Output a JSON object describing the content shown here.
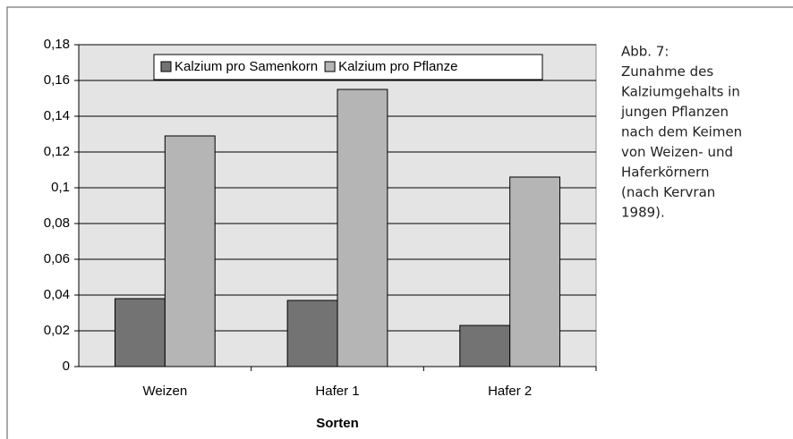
{
  "chart_data": {
    "type": "bar",
    "categories": [
      "Weizen",
      "Hafer 1",
      "Hafer 2"
    ],
    "series": [
      {
        "name": "Kalzium pro Samenkorn",
        "color": "#737373",
        "values": [
          0.038,
          0.037,
          0.023
        ]
      },
      {
        "name": "Kalzium pro Pflanze",
        "color": "#b5b5b5",
        "values": [
          0.129,
          0.155,
          0.106
        ]
      }
    ],
    "x_label": "Sorten",
    "ylim": [
      0,
      0.18
    ],
    "yticks": [
      0,
      {
        "value": 0.02,
        "label": "0,02"
      },
      {
        "value": 0.04,
        "label": "0,04"
      },
      {
        "value": 0.06,
        "label": "0,06"
      },
      {
        "value": 0.08,
        "label": "0,08"
      },
      {
        "value": 0.1,
        "label": "0,1"
      },
      {
        "value": 0.12,
        "label": "0,12"
      },
      {
        "value": 0.14,
        "label": "0,14"
      },
      {
        "value": 0.16,
        "label": "0,16"
      },
      {
        "value": 0.18,
        "label": "0,18"
      }
    ],
    "grid": true,
    "legend": "top"
  },
  "caption": [
    "Abb. 7:",
    "Zunahme des",
    "Kalziumgehalts in",
    "jungen Pflanzen",
    "nach dem Keimen",
    "von Weizen- und",
    "Haferkörnern",
    "(nach Kervran",
    "1989)."
  ]
}
